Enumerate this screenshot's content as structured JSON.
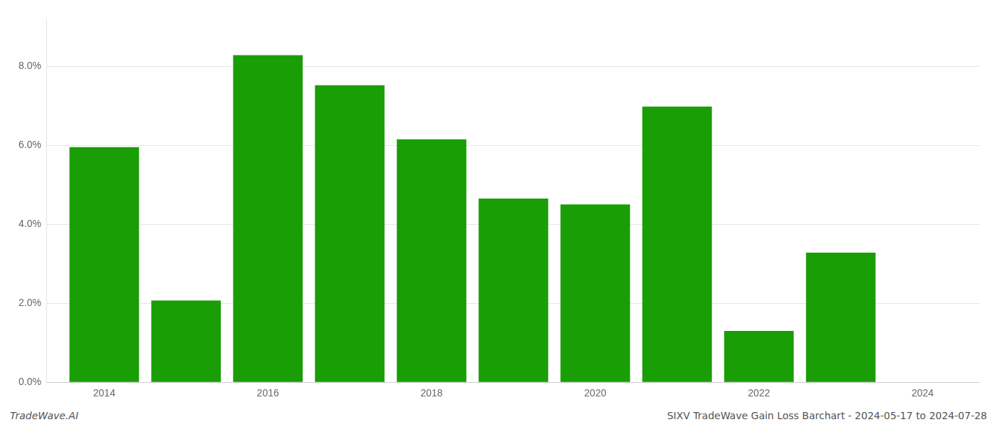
{
  "chart_data": {
    "type": "bar",
    "x": [
      2014,
      2015,
      2016,
      2017,
      2018,
      2019,
      2020,
      2021,
      2022,
      2023
    ],
    "values": [
      0.0595,
      0.0207,
      0.0828,
      0.0752,
      0.0615,
      0.0465,
      0.045,
      0.0698,
      0.013,
      0.0328
    ],
    "color": "#1a9e06",
    "xlim": [
      2013.3,
      2024.7
    ],
    "xticks": [
      2014,
      2016,
      2018,
      2020,
      2022,
      2024
    ],
    "ylim": [
      0,
      0.092
    ],
    "yticks": [
      {
        "value": 0.0,
        "label": "0.0%"
      },
      {
        "value": 0.02,
        "label": "2.0%"
      },
      {
        "value": 0.04,
        "label": "4.0%"
      },
      {
        "value": 0.06,
        "label": "6.0%"
      },
      {
        "value": 0.08,
        "label": "8.0%"
      }
    ],
    "grid": true,
    "annotations": [
      "TradeWave.AI",
      "SIXV TradeWave Gain Loss Barchart - 2024-05-17 to 2024-07-28"
    ]
  }
}
